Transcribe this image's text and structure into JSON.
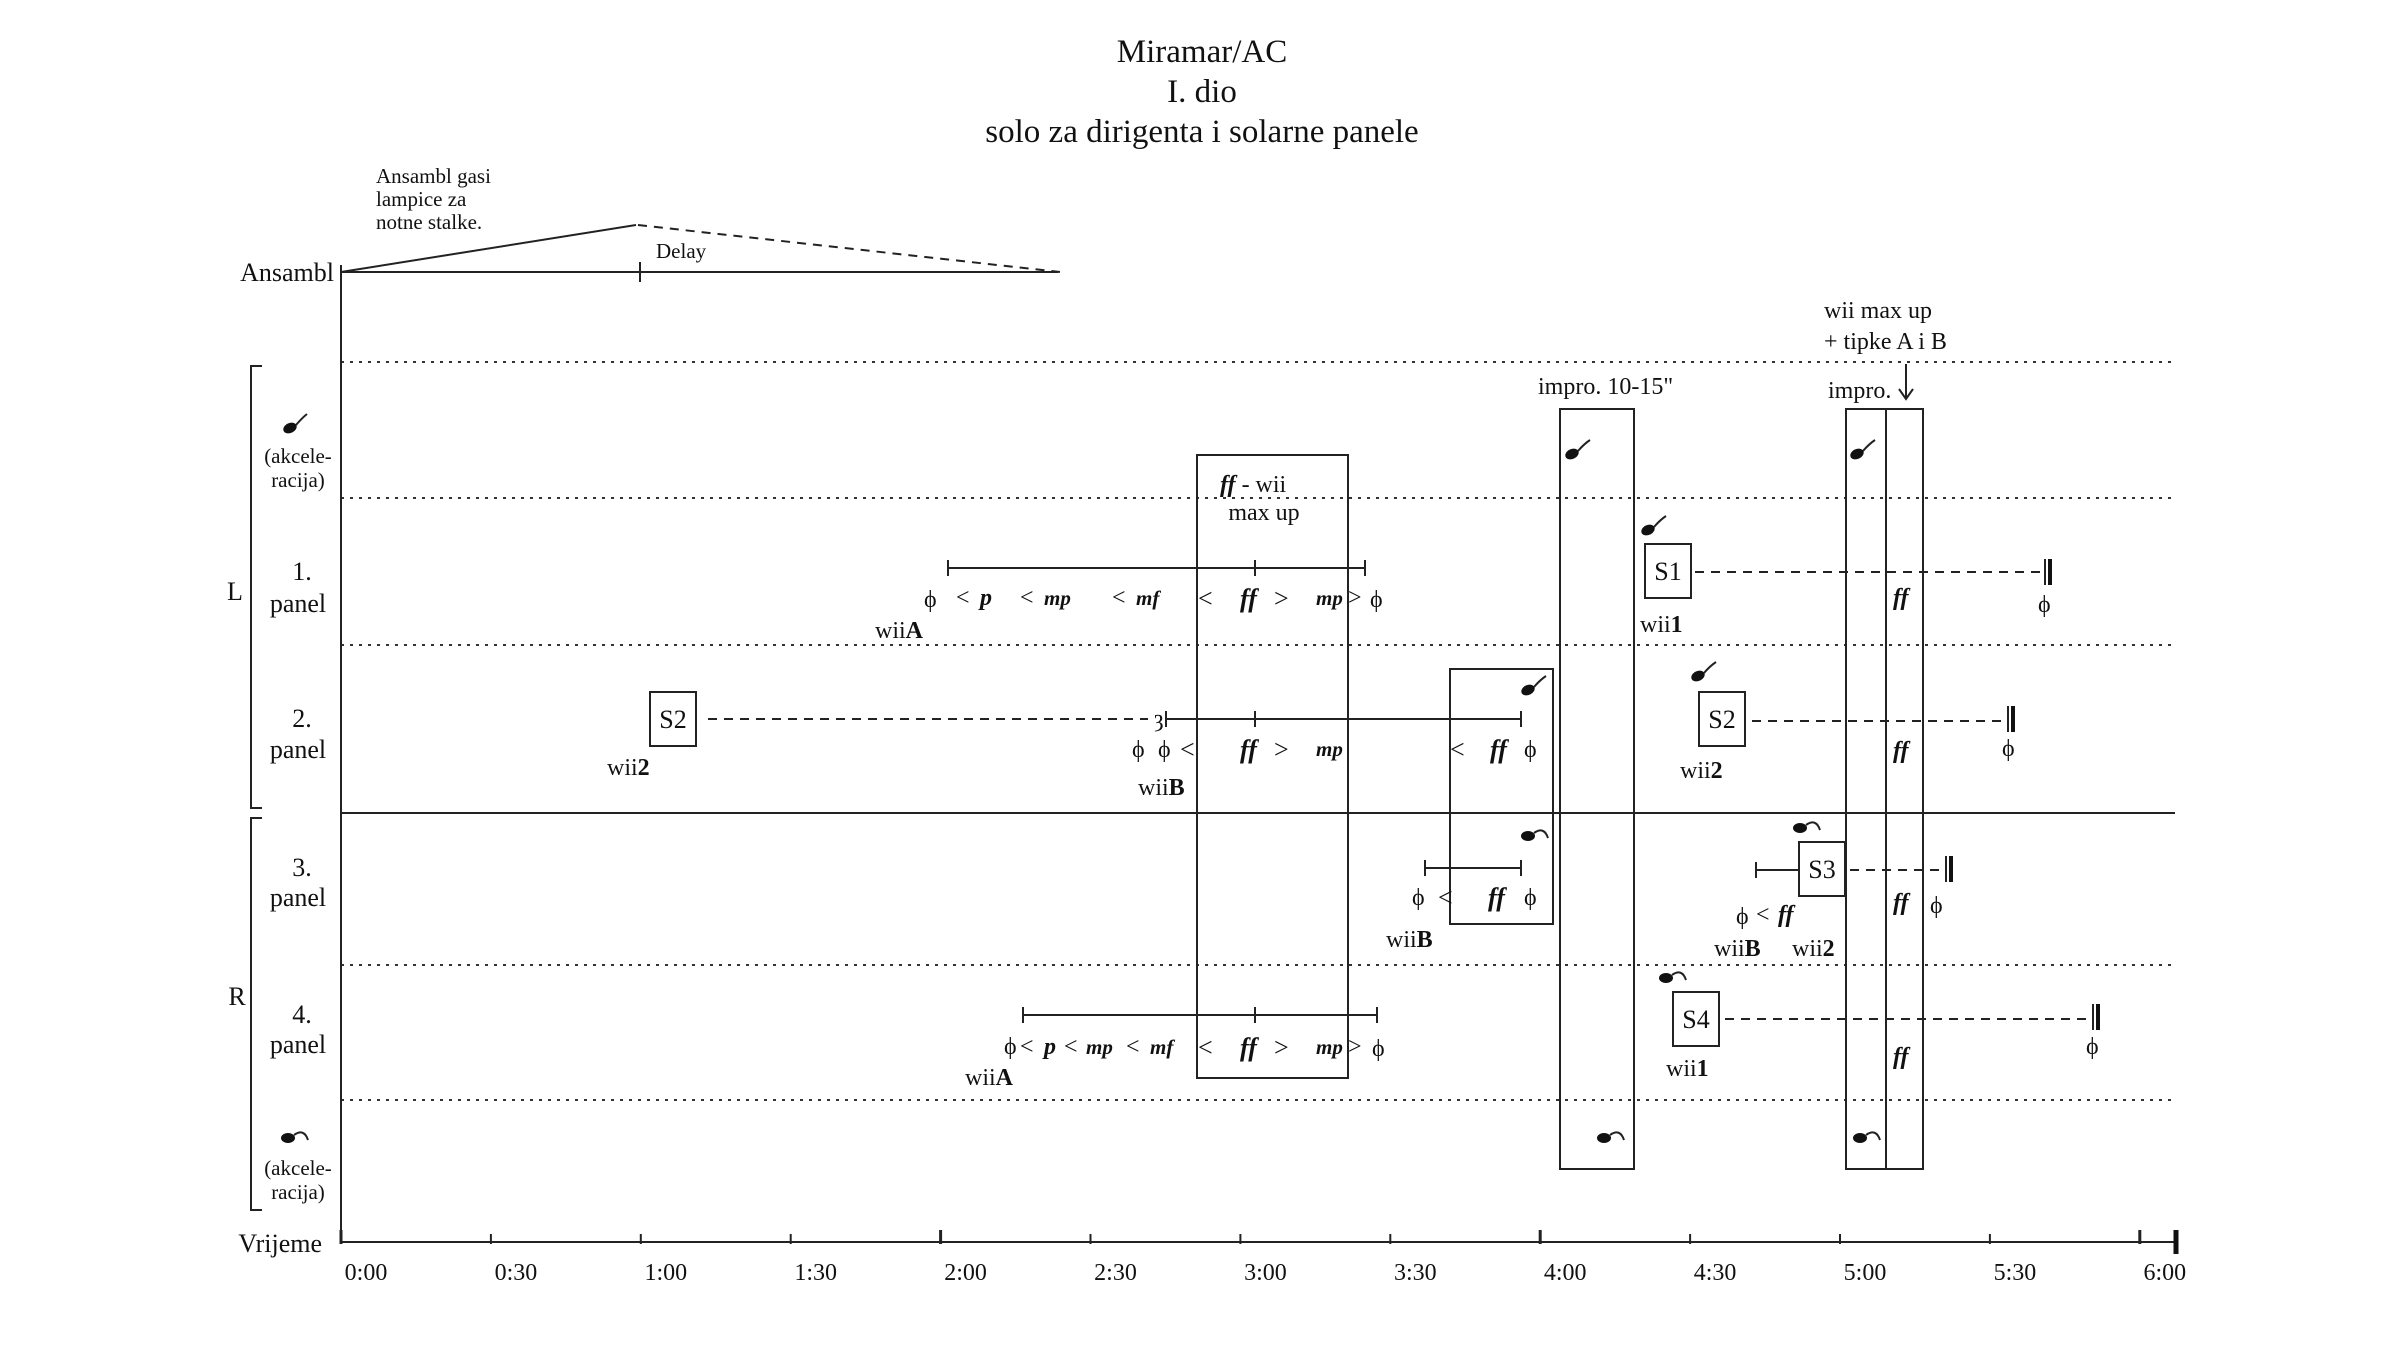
{
  "title": {
    "line1": "Miramar/AC",
    "line2": "I. dio",
    "line3": "solo za dirigenta i solarne panele"
  },
  "ensemble": {
    "label": "Ansambl",
    "note_line1": "Ansambl gasi",
    "note_line2": "lampice za",
    "note_line3": "notne stalke.",
    "delay_label": "Delay"
  },
  "rows": {
    "accel_top_line1": "(akcele-",
    "accel_top_line2": "racija)",
    "panel1_num": "1.",
    "panel1_word": "panel",
    "panel2_num": "2.",
    "panel2_word": "panel",
    "panel3_num": "3.",
    "panel3_word": "panel",
    "panel4_num": "4.",
    "panel4_word": "panel",
    "accel_bottom_line1": "(akcele-",
    "accel_bottom_line2": "racija)",
    "group_L": "L",
    "group_R": "R"
  },
  "axis": {
    "label": "Vrijeme",
    "ticks": [
      "0:00",
      "0:30",
      "1:00",
      "1:30",
      "2:00",
      "2:30",
      "3:00",
      "3:30",
      "4:00",
      "4:30",
      "5:00",
      "5:30",
      "6:00"
    ]
  },
  "annotations": {
    "ff_wii": "ff",
    "ff_wii_rest": " - wii",
    "max_up": "max up",
    "impro_10_15": "impro. 10-15\"",
    "wii_max_up": "wii max up",
    "tipke": "+ tipke A i B",
    "impro": "impro."
  },
  "boxes": {
    "S1": "S1",
    "S2_a": "S2",
    "S2_b": "S2",
    "S3": "S3",
    "S4": "S4"
  },
  "wii_labels": {
    "wiiA_1_pre": "wii",
    "wiiA_1_bold": "A",
    "wii1_a_pre": "wii",
    "wii1_a_bold": "1",
    "wii2_a_pre": "wii",
    "wii2_a_bold": "2",
    "wiiB_1_pre": "wii",
    "wiiB_1_bold": "B",
    "wii2_b_pre": "wii",
    "wii2_b_bold": "2",
    "wiiB_2_pre": "wii",
    "wiiB_2_bold": "B",
    "wiiB_3_pre": "wii",
    "wiiB_3_bold": "B",
    "wii2_c_pre": "wii",
    "wii2_c_bold": "2",
    "wiiA_2_pre": "wii",
    "wiiA_2_bold": "A",
    "wii1_b_pre": "wii",
    "wii1_b_bold": "1"
  },
  "dynamics": {
    "null": "ϕ",
    "p": "p",
    "mp": "mp",
    "mf": "mf",
    "ff": "ff",
    "lt": "<",
    "gt": ">"
  }
}
